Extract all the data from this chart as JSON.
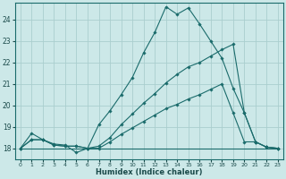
{
  "xlabel": "Humidex (Indice chaleur)",
  "ylabel": "",
  "bg_color": "#cce8e8",
  "grid_color": "#aacece",
  "line_color": "#1a6b6b",
  "xlim": [
    -0.5,
    23.5
  ],
  "ylim": [
    17.5,
    24.8
  ],
  "yticks": [
    18,
    19,
    20,
    21,
    22,
    23,
    24
  ],
  "xticks": [
    0,
    1,
    2,
    3,
    4,
    5,
    6,
    7,
    8,
    9,
    10,
    11,
    12,
    13,
    14,
    15,
    16,
    17,
    18,
    19,
    20,
    21,
    22,
    23
  ],
  "series": [
    {
      "x": [
        0,
        1,
        2,
        3,
        4,
        5,
        6,
        7,
        8,
        9,
        10,
        11,
        12,
        13,
        14,
        15,
        16,
        17,
        18,
        19,
        20,
        21,
        22,
        23
      ],
      "y": [
        18.0,
        18.7,
        18.4,
        18.2,
        18.15,
        17.8,
        18.0,
        19.1,
        19.75,
        20.5,
        21.3,
        22.45,
        23.4,
        24.6,
        24.25,
        24.55,
        23.8,
        23.0,
        22.2,
        20.8,
        19.65,
        18.3,
        18.05,
        18.0
      ],
      "has_markers": true
    },
    {
      "x": [
        0,
        1,
        2,
        3,
        4,
        5,
        6,
        7,
        8,
        9,
        10,
        11,
        12,
        13,
        14,
        15,
        16,
        17,
        18,
        19,
        20,
        21,
        22,
        23
      ],
      "y": [
        18.0,
        18.4,
        18.4,
        18.15,
        18.1,
        18.1,
        18.0,
        18.1,
        18.5,
        19.1,
        19.6,
        20.1,
        20.55,
        21.05,
        21.45,
        21.8,
        22.0,
        22.3,
        22.6,
        22.85,
        19.65,
        18.3,
        18.05,
        18.0
      ],
      "has_markers": true
    },
    {
      "x": [
        0,
        1,
        2,
        3,
        4,
        5,
        6,
        7,
        8,
        9,
        10,
        11,
        12,
        13,
        14,
        15,
        16,
        17,
        18,
        19,
        20,
        21,
        22,
        23
      ],
      "y": [
        18.0,
        18.4,
        18.4,
        18.15,
        18.1,
        18.1,
        18.0,
        18.0,
        18.3,
        18.65,
        18.95,
        19.25,
        19.55,
        19.85,
        20.05,
        20.3,
        20.5,
        20.75,
        21.0,
        19.65,
        18.3,
        18.3,
        18.05,
        18.0
      ],
      "has_markers": true
    },
    {
      "x": [
        0,
        23
      ],
      "y": [
        18.0,
        18.0
      ],
      "has_markers": false
    }
  ]
}
